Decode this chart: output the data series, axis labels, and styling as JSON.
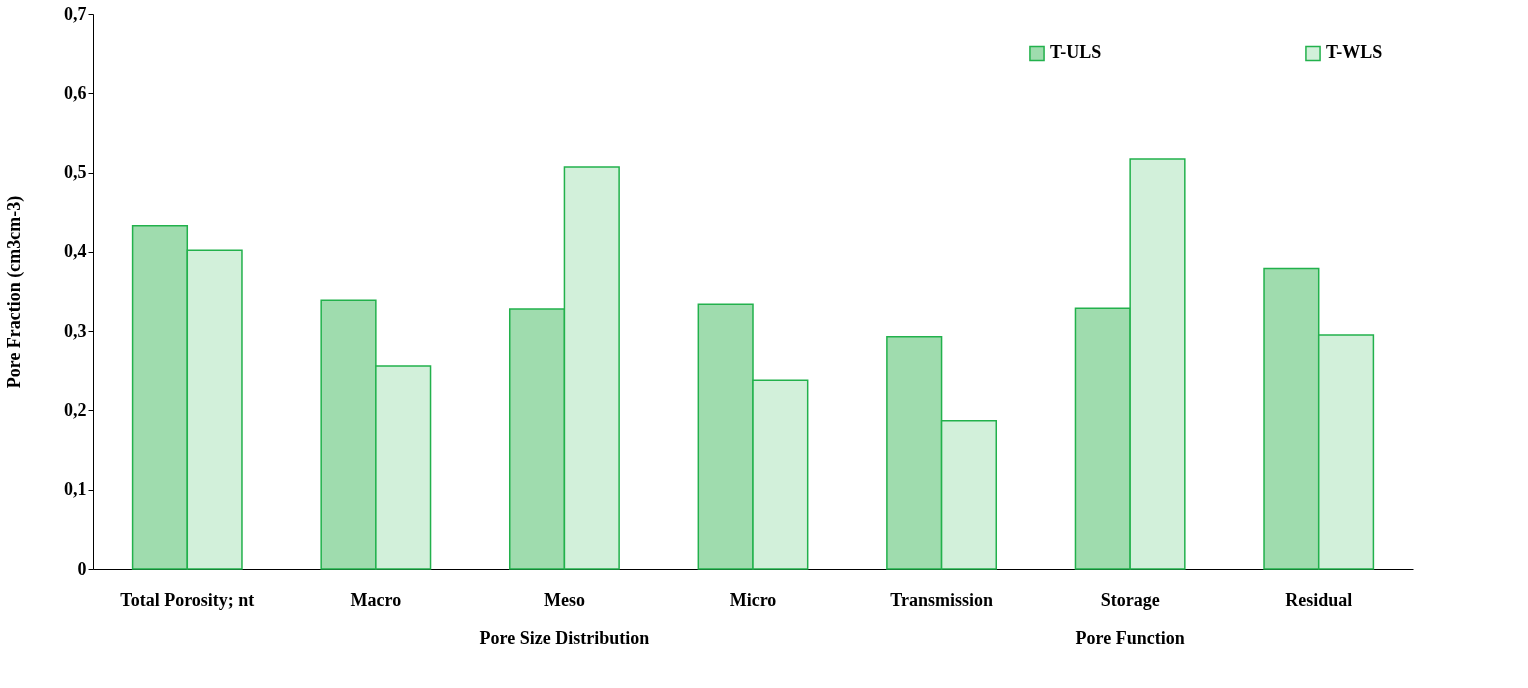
{
  "chart_data": {
    "type": "bar",
    "ylabel": "Pore Fraction (cm3cm-3)",
    "categories": [
      "Total Porosity; nt",
      "Macro",
      "Meso",
      "Micro",
      "Transmission",
      "Storage",
      "Residual"
    ],
    "series": [
      {
        "name": "T-ULS",
        "color": "#9fdcae",
        "values": [
          0.433,
          0.339,
          0.328,
          0.334,
          0.293,
          0.329,
          0.379
        ]
      },
      {
        "name": "T-WLS",
        "color": "#d2f0da",
        "values": [
          0.402,
          0.256,
          0.507,
          0.238,
          0.187,
          0.517,
          0.295
        ]
      }
    ],
    "ylim": [
      0,
      0.7
    ],
    "yticks": [
      0,
      {
        "value": 0.1,
        "label": "0,1"
      },
      {
        "value": 0.2,
        "label": "0,2"
      },
      {
        "value": 0.3,
        "label": "0,3"
      },
      {
        "value": 0.4,
        "label": "0,4"
      },
      {
        "value": 0.5,
        "label": "0,5"
      },
      {
        "value": 0.6,
        "label": "0,6"
      },
      {
        "value": 0.7,
        "label": "0,7"
      }
    ],
    "annotations": [
      "Pore Size Distribution",
      "Pore Function"
    ],
    "grid": false,
    "legend": "top right"
  }
}
